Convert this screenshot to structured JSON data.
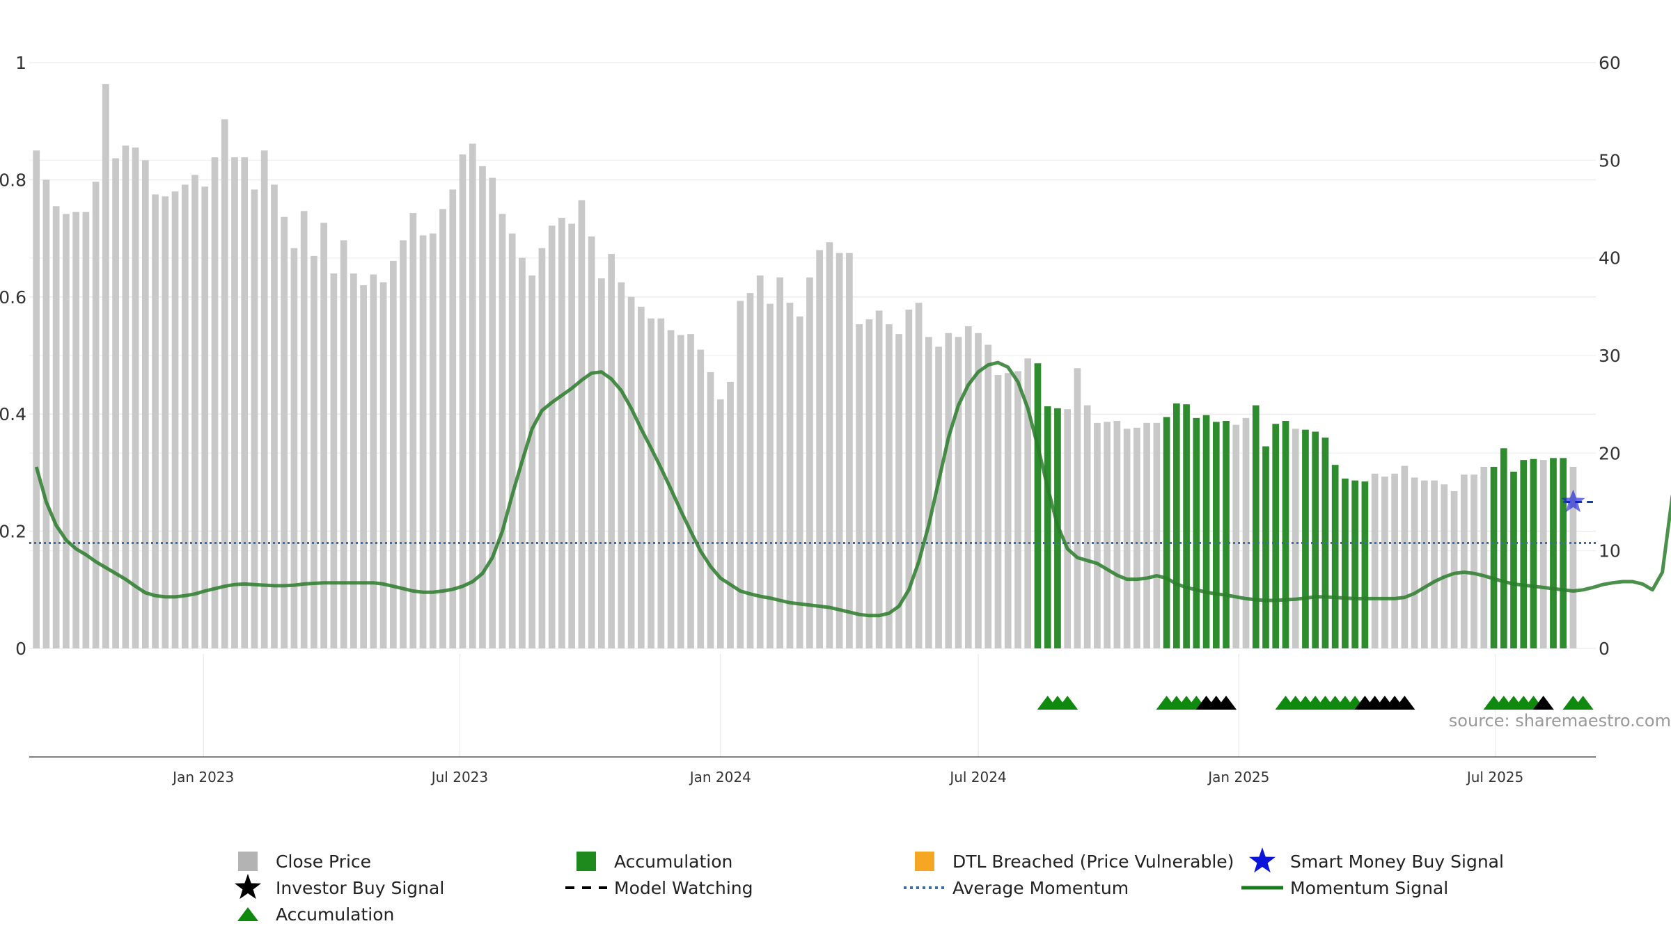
{
  "chart_data": {
    "type": "bar",
    "title": "",
    "source": "source: sharemaestro.com",
    "left_axis": {
      "ticks": [
        "0",
        "0.2",
        "0.4",
        "0.6",
        "0.8",
        "1"
      ],
      "values": [
        0,
        0.2,
        0.4,
        0.6,
        0.8,
        1
      ],
      "ylim": [
        0,
        1
      ]
    },
    "right_axis": {
      "ticks": [
        "0",
        "10",
        "20",
        "30",
        "40",
        "50",
        "60"
      ],
      "values": [
        0,
        10,
        20,
        30,
        40,
        50,
        60
      ],
      "ylim": [
        0,
        60
      ]
    },
    "x_axis": {
      "tick_labels": [
        "Jan 2023",
        "Jul 2023",
        "Jan 2024",
        "Jul 2024",
        "Jan 2025",
        "Jul 2025"
      ],
      "tick_dates": [
        "2023-01-01",
        "2023-07-01",
        "2024-01-01",
        "2024-07-01",
        "2025-01-01",
        "2025-07-01"
      ],
      "xlim": [
        "2022-08-31",
        "2025-09-10"
      ]
    },
    "close_price": {
      "start_date": "2022-09-05",
      "interval_days": 7,
      "values": [
        51,
        48,
        45.3,
        44.5,
        44.7,
        44.7,
        47.8,
        57.8,
        50.2,
        51.5,
        51.3,
        50,
        46.5,
        46.3,
        46.8,
        47.5,
        48.5,
        47.3,
        50.3,
        54.2,
        50.3,
        50.3,
        47,
        51,
        47.5,
        44.2,
        41,
        44.8,
        40.2,
        43.6,
        38.4,
        41.8,
        38.4,
        37.2,
        38.3,
        37.5,
        39.7,
        41.8,
        44.6,
        42.3,
        42.5,
        45,
        47,
        50.6,
        51.7,
        49.4,
        48.2,
        44.5,
        42.5,
        40,
        38.2,
        41,
        43.3,
        44.1,
        43.5,
        45.9,
        42.2,
        37.9,
        40.4,
        37.5,
        36,
        35,
        33.8,
        33.8,
        32.6,
        32.1,
        32.2,
        30.6,
        28.3,
        25.5,
        27.3,
        35.6,
        36.4,
        38.2,
        35.3,
        38,
        35.4,
        34,
        38,
        40.8,
        41.6,
        40.5,
        40.5,
        33.2,
        33.7,
        34.6,
        33.2,
        32.2,
        34.7,
        35.4,
        31.9,
        30.9,
        32.3,
        31.9,
        33,
        32.3,
        31.1,
        28,
        28.2,
        28.4,
        29.7,
        29.2,
        24.8,
        24.6,
        24.5,
        28.7,
        24.9,
        23.1,
        23.2,
        23.3,
        22.5,
        22.6,
        23.1,
        23.1,
        23.7,
        25.1,
        25,
        23.6,
        23.9,
        23.2,
        23.3,
        22.9,
        23.6,
        24.9,
        20.7,
        23,
        23.3,
        22.5,
        22.4,
        22.2,
        21.6,
        18.8,
        17.4,
        17.2,
        17.1,
        17.9,
        17.6,
        17.9,
        18.7,
        17.5,
        17.2,
        17.2,
        16.8,
        16.1,
        17.8,
        17.8,
        18.6,
        18.6,
        20.5,
        18.1,
        19.3,
        19.4,
        19.3,
        19.5,
        19.5,
        18.6
      ],
      "accumulation_ranges": [
        [
          101,
          103
        ],
        [
          114,
          120
        ],
        [
          123,
          126
        ],
        [
          128,
          134
        ],
        [
          147,
          151
        ],
        [
          153,
          154
        ]
      ]
    },
    "momentum_signal": {
      "start_date": "2022-09-05",
      "interval_days": 7,
      "values": [
        0.31,
        0.25,
        0.21,
        0.185,
        0.17,
        0.16,
        0.148,
        0.138,
        0.128,
        0.118,
        0.106,
        0.095,
        0.09,
        0.088,
        0.088,
        0.09,
        0.093,
        0.098,
        0.102,
        0.106,
        0.109,
        0.11,
        0.109,
        0.108,
        0.107,
        0.107,
        0.108,
        0.11,
        0.111,
        0.112,
        0.112,
        0.112,
        0.112,
        0.112,
        0.112,
        0.11,
        0.106,
        0.102,
        0.098,
        0.096,
        0.096,
        0.098,
        0.101,
        0.106,
        0.114,
        0.128,
        0.155,
        0.2,
        0.262,
        0.32,
        0.375,
        0.406,
        0.42,
        0.432,
        0.444,
        0.458,
        0.47,
        0.472,
        0.46,
        0.44,
        0.41,
        0.375,
        0.342,
        0.308,
        0.272,
        0.235,
        0.2,
        0.166,
        0.14,
        0.12,
        0.109,
        0.098,
        0.093,
        0.089,
        0.086,
        0.082,
        0.078,
        0.076,
        0.074,
        0.072,
        0.07,
        0.066,
        0.062,
        0.058,
        0.056,
        0.056,
        0.06,
        0.072,
        0.1,
        0.148,
        0.21,
        0.285,
        0.36,
        0.415,
        0.45,
        0.472,
        0.484,
        0.488,
        0.48,
        0.455,
        0.41,
        0.345,
        0.275,
        0.21,
        0.17,
        0.155,
        0.15,
        0.145,
        0.135,
        0.125,
        0.118,
        0.118,
        0.12,
        0.124,
        0.12,
        0.11,
        0.104,
        0.1,
        0.096,
        0.093,
        0.091,
        0.088,
        0.085,
        0.083,
        0.082,
        0.082,
        0.083,
        0.084,
        0.086,
        0.088,
        0.088,
        0.087,
        0.086,
        0.085,
        0.085,
        0.085,
        0.085,
        0.085,
        0.087,
        0.094,
        0.104,
        0.114,
        0.122,
        0.128,
        0.13,
        0.128,
        0.124,
        0.119,
        0.114,
        0.11,
        0.108,
        0.106,
        0.104,
        0.102,
        0.1,
        0.098,
        0.1,
        0.104,
        0.109,
        0.112,
        0.114,
        0.114,
        0.11,
        0.1,
        0.13,
        0.26,
        0.3,
        0.32
      ]
    },
    "average_momentum": 0.18,
    "model_watching": {
      "start_date": "2025-08-18",
      "end_date": "2025-09-08",
      "value": 0.25
    },
    "smart_money_buy_signal": {
      "date": "2025-08-25",
      "value": 0.25
    },
    "signal_markers": [
      {
        "date": "2024-08-19",
        "type": "Accumulation"
      },
      {
        "date": "2024-08-26",
        "type": "Accumulation"
      },
      {
        "date": "2024-09-02",
        "type": "Accumulation"
      },
      {
        "date": "2024-11-11",
        "type": "Accumulation"
      },
      {
        "date": "2024-11-18",
        "type": "Accumulation"
      },
      {
        "date": "2024-11-25",
        "type": "Accumulation"
      },
      {
        "date": "2024-12-02",
        "type": "Accumulation"
      },
      {
        "date": "2024-12-09",
        "type": "Investor Buy Signal"
      },
      {
        "date": "2024-12-16",
        "type": "Investor Buy Signal"
      },
      {
        "date": "2024-12-23",
        "type": "Investor Buy Signal"
      },
      {
        "date": "2025-02-03",
        "type": "Accumulation"
      },
      {
        "date": "2025-02-10",
        "type": "Accumulation"
      },
      {
        "date": "2025-02-17",
        "type": "Accumulation"
      },
      {
        "date": "2025-02-24",
        "type": "Accumulation"
      },
      {
        "date": "2025-03-03",
        "type": "Accumulation"
      },
      {
        "date": "2025-03-10",
        "type": "Accumulation"
      },
      {
        "date": "2025-03-17",
        "type": "Accumulation"
      },
      {
        "date": "2025-03-24",
        "type": "Accumulation"
      },
      {
        "date": "2025-03-31",
        "type": "Investor Buy Signal"
      },
      {
        "date": "2025-04-07",
        "type": "Investor Buy Signal"
      },
      {
        "date": "2025-04-14",
        "type": "Investor Buy Signal"
      },
      {
        "date": "2025-04-21",
        "type": "Investor Buy Signal"
      },
      {
        "date": "2025-04-28",
        "type": "Investor Buy Signal"
      },
      {
        "date": "2025-06-30",
        "type": "Accumulation"
      },
      {
        "date": "2025-07-07",
        "type": "Accumulation"
      },
      {
        "date": "2025-07-14",
        "type": "Accumulation"
      },
      {
        "date": "2025-07-21",
        "type": "Accumulation"
      },
      {
        "date": "2025-07-28",
        "type": "Accumulation"
      },
      {
        "date": "2025-08-04",
        "type": "Investor Buy Signal"
      },
      {
        "date": "2025-08-25",
        "type": "Accumulation"
      },
      {
        "date": "2025-09-01",
        "type": "Accumulation"
      }
    ],
    "legend": [
      {
        "label": "Close Price",
        "symbol": "square",
        "color": "#b3b3b3"
      },
      {
        "label": "Accumulation",
        "symbol": "square",
        "color": "#1e8a1e"
      },
      {
        "label": "DTL Breached (Price Vulnerable)",
        "symbol": "square",
        "color": "#f5a623"
      },
      {
        "label": "Smart Money Buy Signal",
        "symbol": "star",
        "color": "#0b14d9"
      },
      {
        "label": "Investor Buy Signal",
        "symbol": "star",
        "color": "#000000"
      },
      {
        "label": "Model Watching",
        "symbol": "dash",
        "color": "#000000"
      },
      {
        "label": "Average Momentum",
        "symbol": "dotted",
        "color": "#3a6ea5"
      },
      {
        "label": "Momentum Signal",
        "symbol": "line",
        "color": "#1a7a1a"
      },
      {
        "label": "Accumulation",
        "symbol": "triangle",
        "color": "#0f8a0f"
      }
    ],
    "legend_position": "bottom",
    "grid": true,
    "colors": {
      "close_price": "#c8c8c8",
      "accumulation_bar": "#2e8b2e",
      "momentum": "#2a7d2a",
      "average_momentum": "#3a6ea5",
      "triangle_accumulation": "#0f8a0f",
      "triangle_investor": "#000000",
      "smart_money": "#0b14d9"
    }
  }
}
